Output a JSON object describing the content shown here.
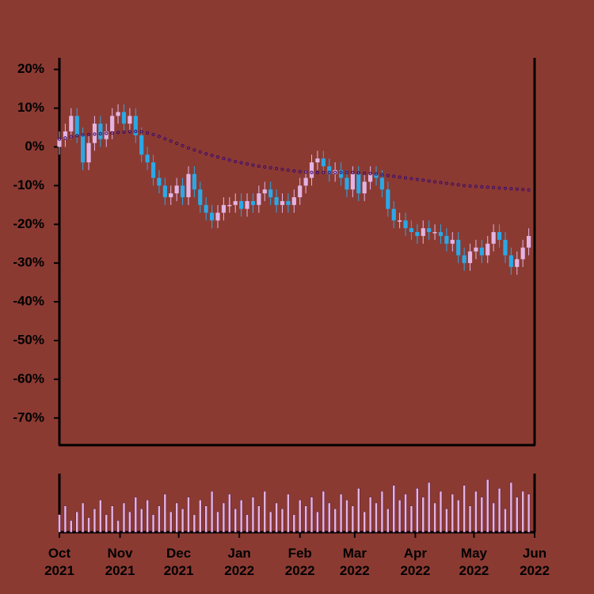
{
  "chart_data": {
    "type": "candlestick",
    "x": [
      0,
      3,
      6,
      9,
      12,
      15,
      18,
      21,
      24,
      27,
      30,
      33,
      36,
      39,
      42,
      45,
      48,
      51,
      54,
      57,
      60,
      63,
      66,
      69,
      72,
      75,
      78,
      81,
      84,
      87,
      90,
      93,
      96,
      99,
      102,
      105,
      108,
      111,
      114,
      117,
      120,
      123,
      126,
      129,
      132,
      135,
      138,
      141,
      144,
      147,
      150,
      153,
      156,
      159,
      162,
      165,
      168,
      171,
      174,
      177,
      180,
      183,
      186,
      189,
      192,
      195,
      198,
      201,
      204,
      207,
      210,
      213,
      216,
      219,
      222,
      225,
      228,
      231,
      234,
      237,
      240
    ],
    "open": [
      0,
      2,
      4,
      8,
      3,
      -4,
      1,
      6,
      2,
      4,
      8,
      9,
      6,
      8,
      3,
      -2,
      -4,
      -8,
      -10,
      -13,
      -12,
      -10,
      -13,
      -7,
      -11,
      -15,
      -17,
      -19,
      -17,
      -15,
      -15,
      -14,
      -16,
      -14,
      -15,
      -12,
      -11,
      -13,
      -15,
      -14,
      -15,
      -13,
      -10,
      -8,
      -4,
      -3,
      -5,
      -7,
      -6,
      -8,
      -11,
      -7,
      -12,
      -9,
      -7,
      -8,
      -11,
      -16,
      -19,
      -19,
      -21,
      -22,
      -23,
      -21,
      -22,
      -22,
      -23,
      -25,
      -24,
      -28,
      -30,
      -27,
      -26,
      -28,
      -25,
      -22,
      -24,
      -28,
      -31,
      -29,
      -26
    ],
    "high": [
      4,
      6,
      10,
      10,
      5,
      3,
      8,
      8,
      6,
      10,
      11,
      11,
      10,
      10,
      5,
      0,
      -2,
      -6,
      -8,
      -10,
      -8,
      -8,
      -5,
      -5,
      -9,
      -13,
      -15,
      -15,
      -13,
      -13,
      -12,
      -12,
      -12,
      -12,
      -10,
      -9,
      -9,
      -11,
      -12,
      -12,
      -11,
      -8,
      -6,
      -2,
      -1,
      -1,
      -3,
      -4,
      -4,
      -6,
      -5,
      -5,
      -7,
      -5,
      -5,
      -6,
      -9,
      -14,
      -17,
      -17,
      -19,
      -20,
      -19,
      -19,
      -20,
      -20,
      -21,
      -22,
      -22,
      -26,
      -25,
      -24,
      -24,
      -23,
      -20,
      -20,
      -22,
      -26,
      -27,
      -24,
      -21
    ],
    "low": [
      -2,
      0,
      2,
      1,
      -6,
      -6,
      -1,
      0,
      0,
      2,
      6,
      4,
      4,
      1,
      -4,
      -6,
      -10,
      -12,
      -15,
      -15,
      -14,
      -15,
      -15,
      -13,
      -17,
      -19,
      -21,
      -21,
      -19,
      -17,
      -17,
      -18,
      -18,
      -17,
      -17,
      -14,
      -15,
      -17,
      -17,
      -17,
      -17,
      -15,
      -12,
      -10,
      -6,
      -7,
      -9,
      -9,
      -10,
      -13,
      -13,
      -14,
      -14,
      -11,
      -10,
      -13,
      -18,
      -21,
      -21,
      -23,
      -24,
      -25,
      -25,
      -24,
      -24,
      -25,
      -27,
      -27,
      -30,
      -32,
      -32,
      -29,
      -30,
      -30,
      -27,
      -26,
      -30,
      -33,
      -33,
      -31,
      -28
    ],
    "close": [
      2,
      4,
      8,
      3,
      -4,
      1,
      6,
      2,
      4,
      8,
      9,
      6,
      8,
      3,
      -2,
      -4,
      -8,
      -10,
      -13,
      -12,
      -10,
      -13,
      -7,
      -11,
      -15,
      -17,
      -19,
      -17,
      -15,
      -15,
      -14,
      -16,
      -14,
      -15,
      -12,
      -11,
      -13,
      -15,
      -14,
      -15,
      -13,
      -10,
      -8,
      -4,
      -3,
      -5,
      -7,
      -6,
      -8,
      -11,
      -7,
      -12,
      -9,
      -7,
      -8,
      -11,
      -16,
      -19,
      -19,
      -21,
      -22,
      -23,
      -21,
      -22,
      -22,
      -23,
      -25,
      -24,
      -28,
      -30,
      -27,
      -26,
      -28,
      -25,
      -22,
      -24,
      -28,
      -31,
      -29,
      -26,
      -23
    ],
    "up_color": "#e3b4e3",
    "down_color": "#2aa8e6",
    "moving_average": {
      "color": "#3a0a6e",
      "values": [
        2,
        2.3,
        2.6,
        2.9,
        3.1,
        3.2,
        3.3,
        3.4,
        3.5,
        3.6,
        3.7,
        3.8,
        3.9,
        4,
        3.9,
        3.6,
        3.2,
        2.7,
        2.1,
        1.5,
        0.9,
        0.3,
        -0.3,
        -0.8,
        -1.3,
        -1.8,
        -2.2,
        -2.6,
        -3,
        -3.4,
        -3.8,
        -4.1,
        -4.4,
        -4.7,
        -5,
        -5.2,
        -5.4,
        -5.6,
        -5.8,
        -6,
        -6.2,
        -6.4,
        -6.5,
        -6.6,
        -6.6,
        -6.6,
        -6.6,
        -6.6,
        -6.6,
        -6.6,
        -6.6,
        -6.7,
        -6.8,
        -6.9,
        -7,
        -7.2,
        -7.4,
        -7.6,
        -7.8,
        -8,
        -8.2,
        -8.4,
        -8.6,
        -8.8,
        -9,
        -9.2,
        -9.4,
        -9.6,
        -9.8,
        -10,
        -10.1,
        -10.2,
        -10.3,
        -10.4,
        -10.5,
        -10.6,
        -10.7,
        -10.8,
        -10.9,
        -11,
        -11.1
      ]
    },
    "volume": {
      "color": "#e3b4e3",
      "ylim": [
        0,
        100
      ],
      "values": [
        30,
        45,
        20,
        35,
        50,
        25,
        40,
        55,
        30,
        45,
        20,
        50,
        35,
        60,
        40,
        55,
        30,
        45,
        65,
        35,
        50,
        40,
        60,
        30,
        55,
        45,
        70,
        35,
        50,
        65,
        40,
        55,
        30,
        60,
        45,
        70,
        35,
        50,
        40,
        65,
        30,
        55,
        45,
        60,
        35,
        70,
        50,
        40,
        65,
        55,
        45,
        75,
        35,
        60,
        50,
        70,
        40,
        80,
        55,
        65,
        45,
        75,
        60,
        85,
        50,
        70,
        40,
        65,
        55,
        80,
        45,
        70,
        60,
        90,
        50,
        75,
        40,
        85,
        60,
        70,
        65
      ]
    },
    "xlim": [
      0,
      243
    ],
    "xticks": [
      {
        "value": 0,
        "label": "Oct 2021"
      },
      {
        "value": 31,
        "label": "Nov 2021"
      },
      {
        "value": 61,
        "label": "Dec 2021"
      },
      {
        "value": 92,
        "label": "Jan 2022"
      },
      {
        "value": 123,
        "label": "Feb 2022"
      },
      {
        "value": 151,
        "label": "Mar 2022"
      },
      {
        "value": 182,
        "label": "Apr 2022"
      },
      {
        "value": 212,
        "label": "May 2022"
      },
      {
        "value": 243,
        "label": "Jun 2022"
      }
    ],
    "ylim": [
      -77,
      23
    ],
    "yticks": [
      {
        "value": 20,
        "label": "20%"
      },
      {
        "value": 10,
        "label": "10%"
      },
      {
        "value": 0,
        "label": "0%"
      },
      {
        "value": -10,
        "label": "-10%"
      },
      {
        "value": -20,
        "label": "-20%"
      },
      {
        "value": -30,
        "label": "-30%"
      },
      {
        "value": -40,
        "label": "-40%"
      },
      {
        "value": -50,
        "label": "-50%"
      },
      {
        "value": -60,
        "label": "-60%"
      },
      {
        "value": -70,
        "label": "-70%"
      }
    ]
  }
}
